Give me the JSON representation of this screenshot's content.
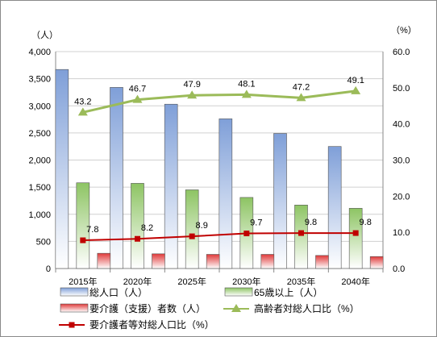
{
  "chart_data": {
    "type": "bar",
    "categories": [
      "2015年",
      "2020年",
      "2025年",
      "2030年",
      "2035年",
      "2040年"
    ],
    "y_left": {
      "unit_label": "（人）",
      "ylim": [
        0,
        4000
      ],
      "ticks": [
        "0",
        "500",
        "1,000",
        "1,500",
        "2,000",
        "2,500",
        "3,000",
        "3,500",
        "4,000"
      ]
    },
    "y_right": {
      "unit_label": "（%）",
      "ylim": [
        0,
        60
      ],
      "ticks": [
        "0.0",
        "10.0",
        "20.0",
        "30.0",
        "40.0",
        "50.0",
        "60.0"
      ]
    },
    "grid": true,
    "legend_position": "bottom",
    "series": [
      {
        "name": "総人口（人）",
        "kind": "bar",
        "axis": "left",
        "color": "#7f9fd8",
        "values": [
          3670,
          3340,
          3030,
          2760,
          2490,
          2250
        ]
      },
      {
        "name": "65歳以上（人）",
        "kind": "bar",
        "axis": "left",
        "color": "#8dc463",
        "values": [
          1580,
          1570,
          1450,
          1310,
          1170,
          1110
        ]
      },
      {
        "name": "要介護（支援）者数（人）",
        "kind": "bar",
        "axis": "left",
        "color": "#e03a3a",
        "values": [
          280,
          270,
          260,
          260,
          240,
          220
        ]
      },
      {
        "name": "高齢者対総人口比（%）",
        "kind": "line",
        "axis": "right",
        "color": "#9bbb59",
        "marker": "triangle",
        "values": [
          43.2,
          46.7,
          47.9,
          48.1,
          47.2,
          49.1
        ],
        "labels": [
          "43.2",
          "46.7",
          "47.9",
          "48.1",
          "47.2",
          "49.1"
        ]
      },
      {
        "name": "要介護者等対総人口比（%）",
        "kind": "line",
        "axis": "right",
        "color": "#c00000",
        "marker": "square",
        "values": [
          7.8,
          8.2,
          8.9,
          9.7,
          9.8,
          9.8
        ],
        "labels": [
          "7.8",
          "8.2",
          "8.9",
          "9.7",
          "9.8",
          "9.8"
        ]
      }
    ]
  }
}
